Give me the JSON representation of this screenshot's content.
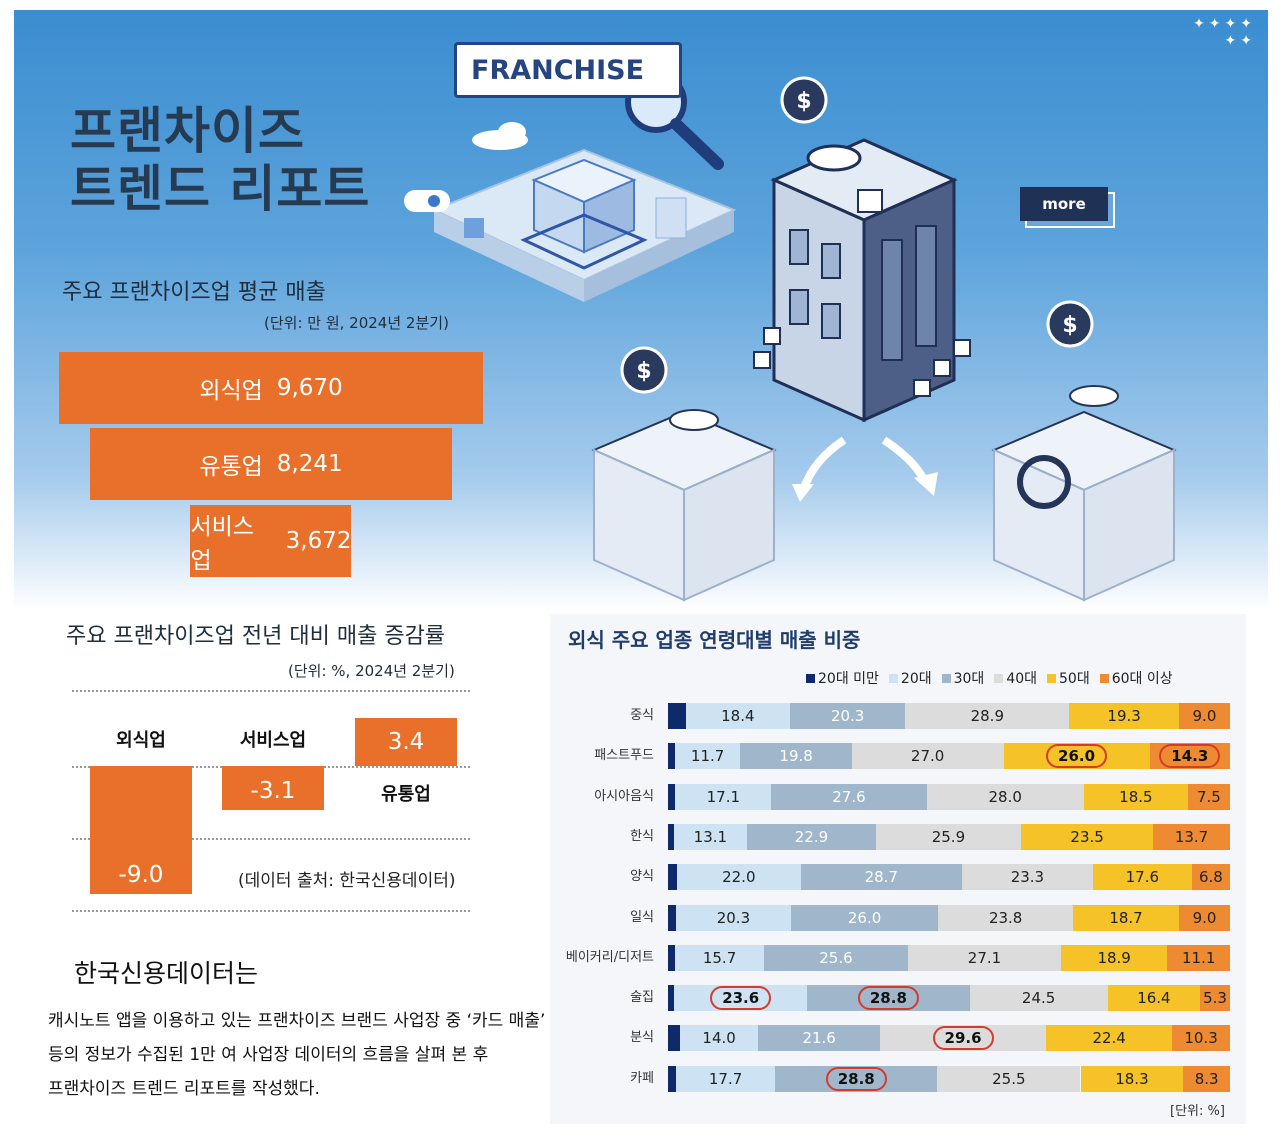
{
  "hero": {
    "title_lines": [
      "프랜차이즈",
      "트렌드 리포트"
    ],
    "franchise_tag": "FRANCHISE",
    "more_button": "more",
    "stars": "✦✦✦✦ ✦✦"
  },
  "colors": {
    "orange": "#e8702a",
    "hero_blue": "#3b8dd0",
    "circle_red": "#d63a2c"
  },
  "chart_data": [
    {
      "type": "bar",
      "title": "주요 프랜차이즈업 평균 매출",
      "unit_note": "(단위: 만 원, 2024년 2분기)",
      "categories": [
        "외식업",
        "유통업",
        "서비스업"
      ],
      "values": [
        9670,
        8241,
        3672
      ],
      "value_labels": [
        "9,670",
        "8,241",
        "3,672"
      ]
    },
    {
      "type": "bar",
      "title": "주요 프랜차이즈업 전년 대비 매출 증감률",
      "unit_note": "(단위: %, 2024년 2분기)",
      "categories": [
        "외식업",
        "서비스업",
        "유통업"
      ],
      "values": [
        -9.0,
        -3.1,
        3.4
      ],
      "value_labels": [
        "-9.0",
        "-3.1",
        "3.4"
      ],
      "source": "(데이터 출처: 한국신용데이터)"
    },
    {
      "type": "bar",
      "stacked": true,
      "orientation": "horizontal",
      "title": "외식 주요 업종 연령대별 매출 비중",
      "unit_note": "[단위: %]",
      "legend_position": "top-right",
      "series": [
        {
          "name": "20대 미만",
          "color": "#0f2a6b"
        },
        {
          "name": "20대",
          "color": "#cde3f3"
        },
        {
          "name": "30대",
          "color": "#9fb6cb"
        },
        {
          "name": "40대",
          "color": "#dcdcdc"
        },
        {
          "name": "50대",
          "color": "#f5c227"
        },
        {
          "name": "60대 이상",
          "color": "#ee8a32"
        }
      ],
      "rows": [
        {
          "label": "중식",
          "values": [
            3.1,
            18.4,
            20.3,
            28.9,
            19.3,
            9.0
          ],
          "labels": [
            "",
            "18.4",
            "20.3",
            "28.9",
            "19.3",
            "9.0"
          ],
          "circled": []
        },
        {
          "label": "패스트푸드",
          "values": [
            1.2,
            11.7,
            19.8,
            27.0,
            26.0,
            14.3
          ],
          "labels": [
            "",
            "11.7",
            "19.8",
            "27.0",
            "26.0",
            "14.3"
          ],
          "circled": [
            4,
            5
          ]
        },
        {
          "label": "아시아음식",
          "values": [
            1.3,
            17.1,
            27.6,
            28.0,
            18.5,
            7.5
          ],
          "labels": [
            "",
            "17.1",
            "27.6",
            "28.0",
            "18.5",
            "7.5"
          ],
          "circled": []
        },
        {
          "label": "한식",
          "values": [
            1.0,
            13.1,
            22.9,
            25.9,
            23.5,
            13.7
          ],
          "labels": [
            "",
            "13.1",
            "22.9",
            "25.9",
            "23.5",
            "13.7"
          ],
          "circled": []
        },
        {
          "label": "양식",
          "values": [
            1.6,
            22.0,
            28.7,
            23.3,
            17.6,
            6.8
          ],
          "labels": [
            "",
            "22.0",
            "28.7",
            "23.3",
            "17.6",
            "6.8"
          ],
          "circled": []
        },
        {
          "label": "일식",
          "values": [
            1.4,
            20.3,
            26.0,
            23.8,
            18.7,
            9.0
          ],
          "labels": [
            "",
            "20.3",
            "26.0",
            "23.8",
            "18.7",
            "9.0"
          ],
          "circled": []
        },
        {
          "label": "베이커리/디저트",
          "values": [
            1.3,
            15.7,
            25.6,
            27.1,
            18.9,
            11.1
          ],
          "labels": [
            "",
            "15.7",
            "25.6",
            "27.1",
            "18.9",
            "11.1"
          ],
          "circled": []
        },
        {
          "label": "술집",
          "values": [
            1.1,
            23.6,
            28.8,
            24.5,
            16.4,
            5.3
          ],
          "labels": [
            "",
            "23.6",
            "28.8",
            "24.5",
            "16.4",
            "5.3"
          ],
          "circled": [
            1,
            2
          ]
        },
        {
          "label": "분식",
          "values": [
            2.1,
            14.0,
            21.6,
            29.6,
            22.4,
            10.3
          ],
          "labels": [
            "",
            "14.0",
            "21.6",
            "29.6",
            "22.4",
            "10.3"
          ],
          "circled": [
            3
          ]
        },
        {
          "label": "카페",
          "values": [
            1.4,
            17.7,
            28.8,
            25.5,
            18.3,
            8.3
          ],
          "labels": [
            "",
            "17.7",
            "28.8",
            "25.5",
            "18.3",
            "8.3"
          ],
          "circled": [
            2
          ]
        }
      ]
    }
  ],
  "kcd": {
    "title": "한국신용데이터는",
    "body": "캐시노트 앱을 이용하고 있는 프랜차이즈 브랜드 사업장 중 ‘카드 매출’ 등의 정보가 수집된 1만 여 사업장 데이터의 흐름을 살펴 본 후 프랜차이즈 트렌드 리포트를 작성했다."
  }
}
